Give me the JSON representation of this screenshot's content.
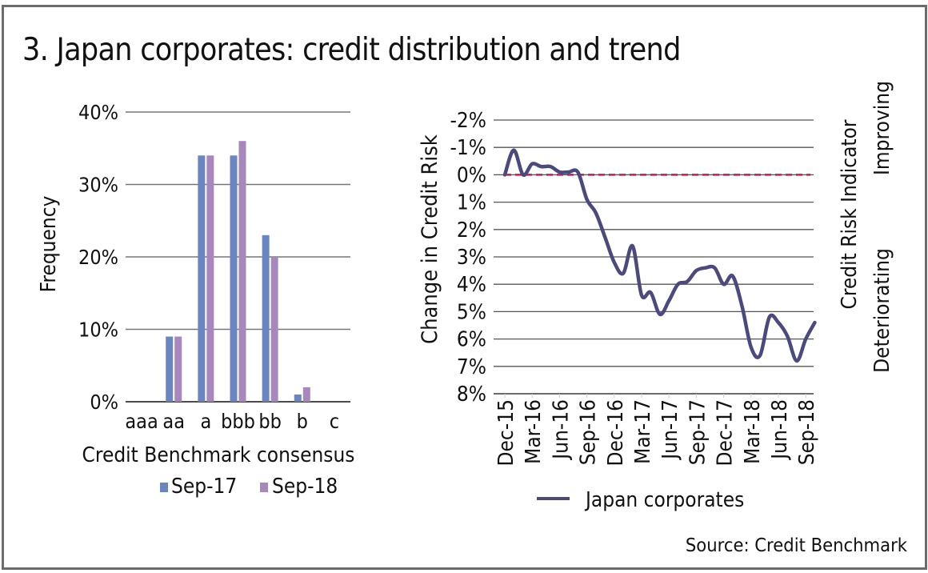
{
  "title": "3. Japan corporates: credit distribution and trend",
  "source": "Source: Credit Benchmark",
  "colors": {
    "sep17": "#6a86c2",
    "sep18": "#a887bd",
    "line": "#4b4a7e",
    "zero_line": "#c2185b",
    "grid": "#555555",
    "frame": "#6b6b6b"
  },
  "chart_data": [
    {
      "type": "bar",
      "title": "",
      "xlabel": "Credit Benchmark consensus",
      "ylabel": "Frequency",
      "ylim": [
        0,
        40
      ],
      "yticks": [
        "0%",
        "10%",
        "20%",
        "30%",
        "40%"
      ],
      "ytick_values": [
        0,
        10,
        20,
        30,
        40
      ],
      "categories": [
        "aaa",
        "aa",
        "a",
        "bbb",
        "bb",
        "b",
        "c"
      ],
      "series": [
        {
          "name": "Sep-17",
          "values": [
            0,
            9,
            34,
            34,
            23,
            1,
            0
          ]
        },
        {
          "name": "Sep-18",
          "values": [
            0,
            9,
            34,
            36,
            20,
            2,
            0
          ]
        }
      ],
      "grid": true,
      "legend": "bottom"
    },
    {
      "type": "line",
      "title": "",
      "xlabel": "",
      "ylabel": "Change in Credit Risk",
      "ylabel_right": "Credit Risk Indicator",
      "right_annotations": {
        "top": "Improving",
        "bottom": "Deteriorating"
      },
      "y_inverted": true,
      "ylim": [
        -2,
        8
      ],
      "yticks": [
        "-2%",
        "-1%",
        "0%",
        "1%",
        "2%",
        "3%",
        "4%",
        "5%",
        "6%",
        "7%",
        "8%"
      ],
      "ytick_values": [
        -2,
        -1,
        0,
        1,
        2,
        3,
        4,
        5,
        6,
        7,
        8
      ],
      "xticks": [
        "Dec-15",
        "Mar-16",
        "Jun-16",
        "Sep-16",
        "Dec-16",
        "Mar-17",
        "Jun-17",
        "Sep-17",
        "Dec-17",
        "Mar-18",
        "Jun-18",
        "Sep-18"
      ],
      "reference_line": {
        "y": 0,
        "style": "dashed"
      },
      "series": [
        {
          "name": "Japan corporates",
          "x": [
            0,
            0.33,
            0.67,
            1,
            1.33,
            1.67,
            2,
            2.33,
            2.67,
            3,
            3.33,
            3.67,
            4,
            4.33,
            4.67,
            5,
            5.33,
            5.67,
            6,
            6.33,
            6.67,
            7,
            7.33,
            7.67,
            8,
            8.33,
            8.67,
            9,
            9.33,
            9.67,
            10,
            10.33,
            10.67,
            11,
            11.33
          ],
          "values": [
            0,
            -0.9,
            0,
            -0.4,
            -0.3,
            -0.3,
            -0.1,
            -0.1,
            -0.1,
            0.9,
            1.4,
            2.3,
            3.2,
            3.6,
            2.6,
            4.4,
            4.3,
            5.1,
            4.6,
            4.0,
            3.9,
            3.5,
            3.4,
            3.4,
            4.0,
            3.7,
            4.8,
            6.3,
            6.6,
            5.2,
            5.4,
            5.9,
            6.8,
            6.0,
            5.4
          ]
        }
      ],
      "grid": true,
      "legend": "bottom"
    }
  ]
}
